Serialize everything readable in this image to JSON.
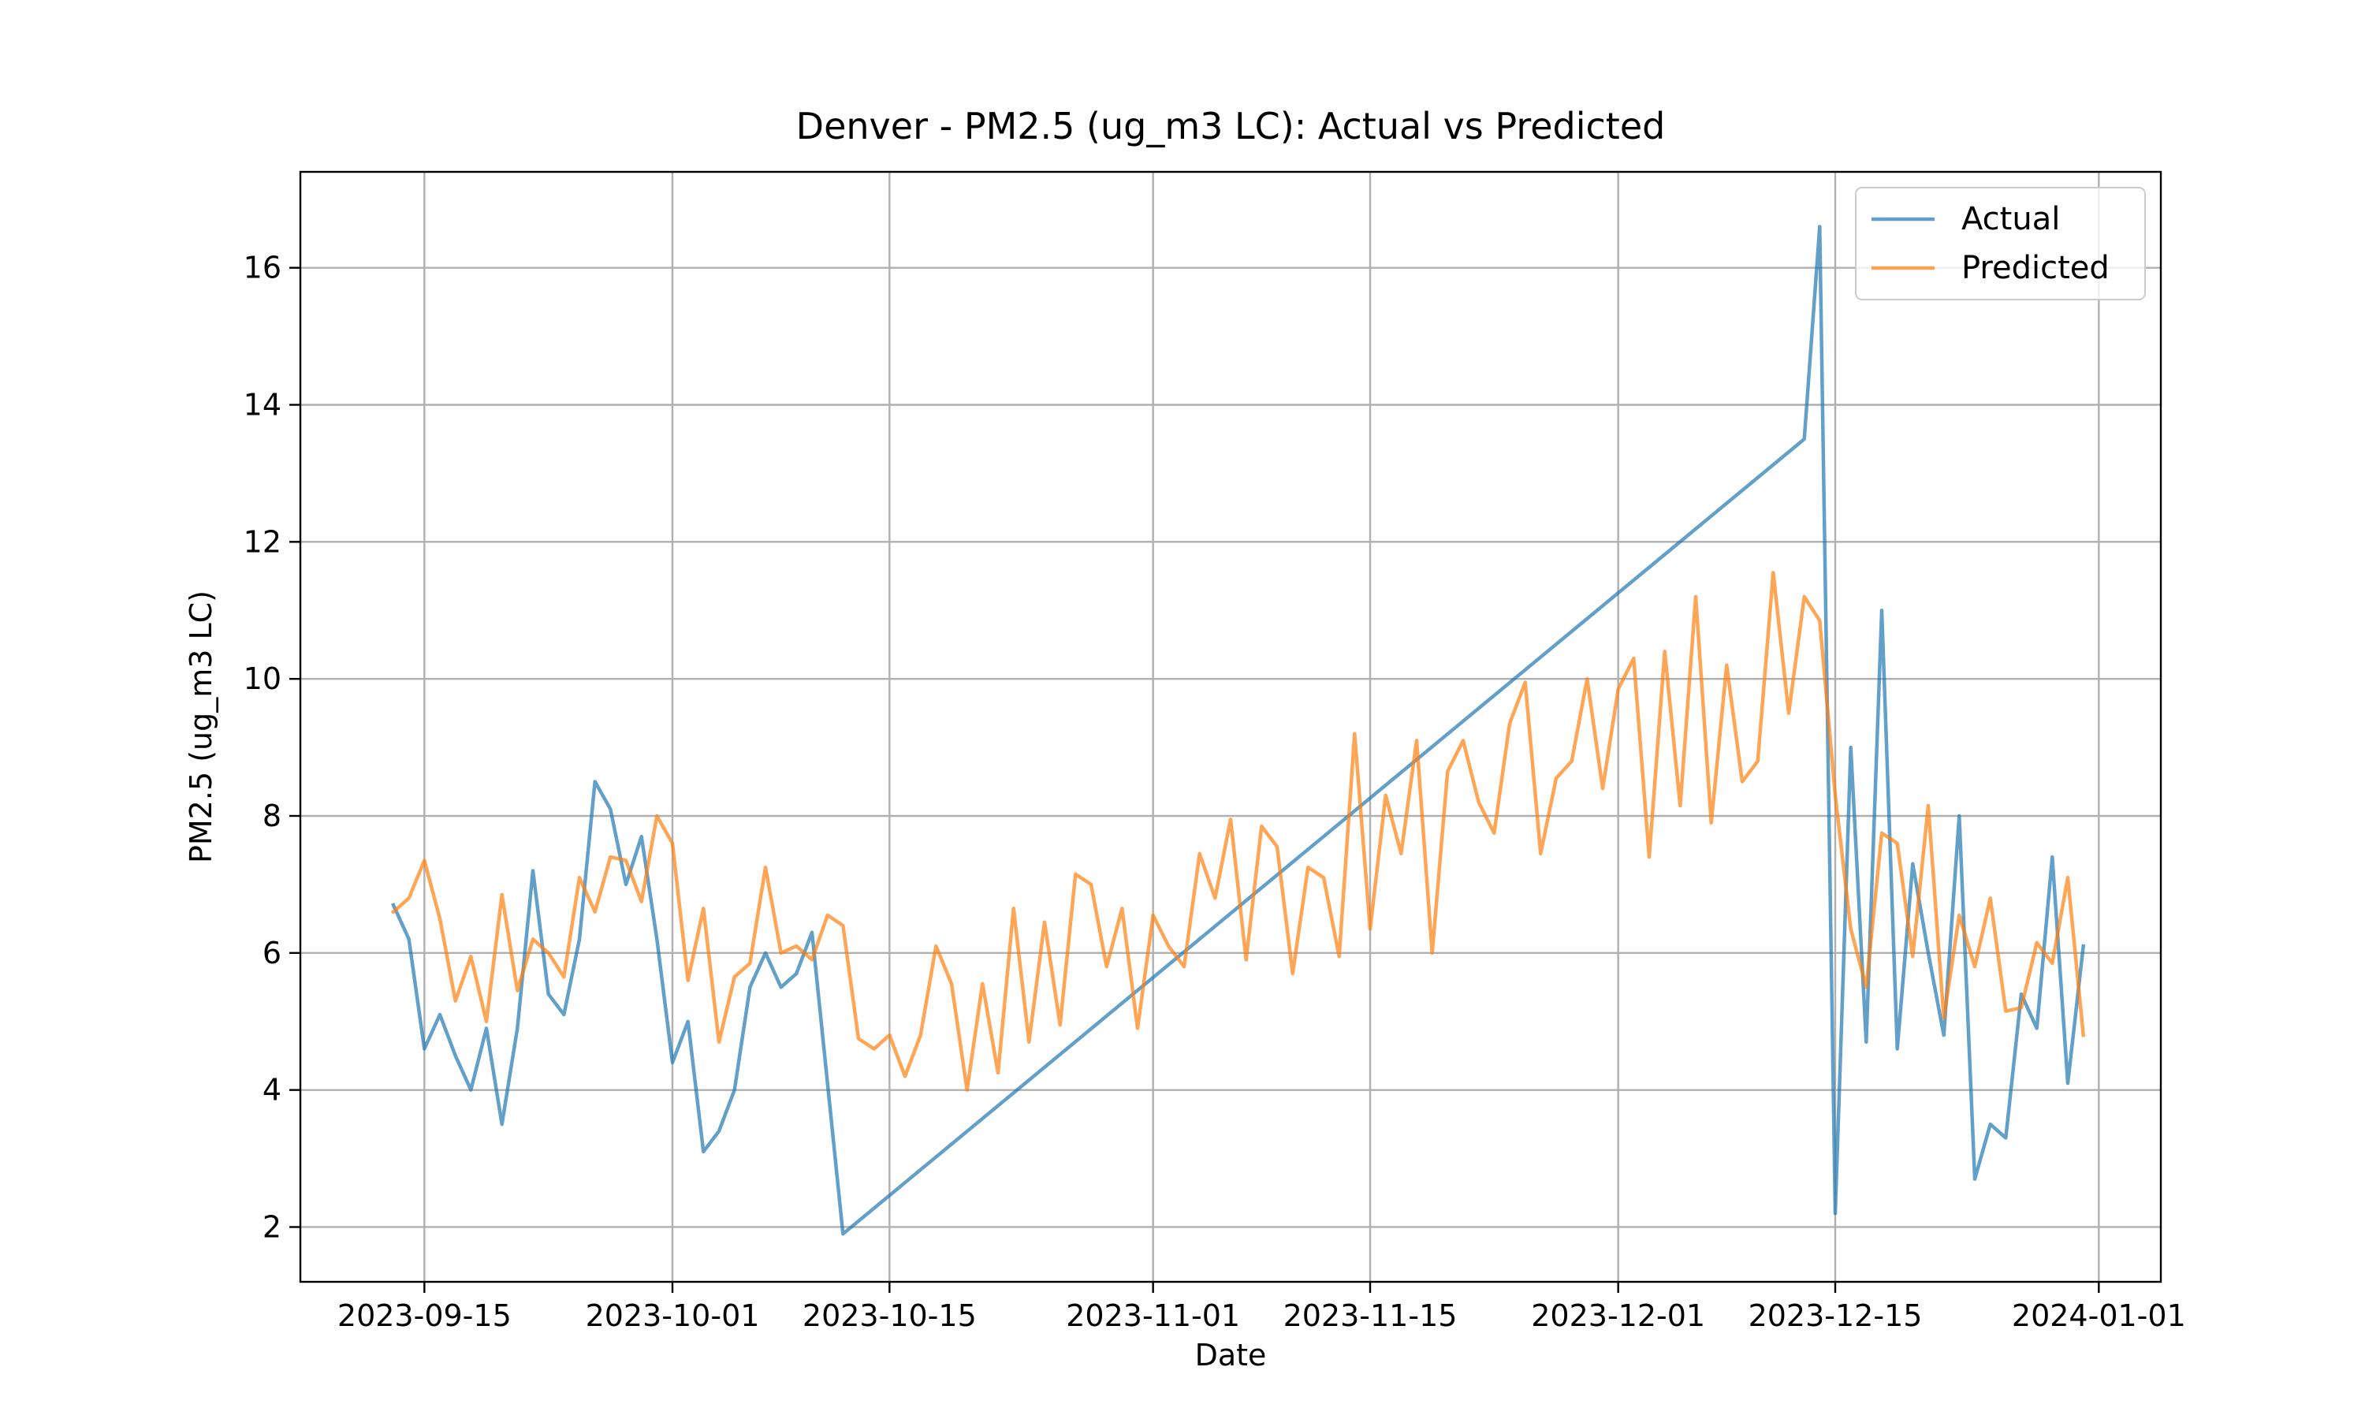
{
  "chart_data": {
    "type": "line",
    "title": "Denver - PM2.5 (ug_m3 LC): Actual vs Predicted",
    "xlabel": "Date",
    "ylabel": "PM2.5 (ug_m3 LC)",
    "xlim": [
      "2023-09-07",
      "2024-01-05"
    ],
    "ylim": [
      1.2,
      17.4
    ],
    "x_ticks": [
      "2023-09-15",
      "2023-10-01",
      "2023-10-15",
      "2023-11-01",
      "2023-11-15",
      "2023-12-01",
      "2023-12-15",
      "2024-01-01"
    ],
    "y_ticks": [
      2,
      4,
      6,
      8,
      10,
      12,
      14,
      16
    ],
    "grid": true,
    "legend_position": "top-right",
    "series": [
      {
        "name": "Actual",
        "color": "#1f77b4",
        "points": [
          [
            "2023-09-13",
            6.7
          ],
          [
            "2023-09-14",
            6.2
          ],
          [
            "2023-09-15",
            4.6
          ],
          [
            "2023-09-16",
            5.1
          ],
          [
            "2023-09-17",
            4.5
          ],
          [
            "2023-09-18",
            4.0
          ],
          [
            "2023-09-19",
            4.9
          ],
          [
            "2023-09-20",
            3.5
          ],
          [
            "2023-09-21",
            4.9
          ],
          [
            "2023-09-22",
            7.2
          ],
          [
            "2023-09-23",
            5.4
          ],
          [
            "2023-09-24",
            5.1
          ],
          [
            "2023-09-25",
            6.2
          ],
          [
            "2023-09-26",
            8.5
          ],
          [
            "2023-09-27",
            8.1
          ],
          [
            "2023-09-28",
            7.0
          ],
          [
            "2023-09-29",
            7.7
          ],
          [
            "2023-09-30",
            6.2
          ],
          [
            "2023-10-01",
            4.4
          ],
          [
            "2023-10-02",
            5.0
          ],
          [
            "2023-10-03",
            3.1
          ],
          [
            "2023-10-04",
            3.4
          ],
          [
            "2023-10-05",
            4.0
          ],
          [
            "2023-10-06",
            5.5
          ],
          [
            "2023-10-07",
            6.0
          ],
          [
            "2023-10-08",
            5.5
          ],
          [
            "2023-10-09",
            5.7
          ],
          [
            "2023-10-10",
            6.3
          ],
          [
            "2023-10-11",
            4.1
          ],
          [
            "2023-10-12",
            1.9
          ],
          [
            "2023-12-13",
            13.5
          ],
          [
            "2023-12-14",
            16.6
          ],
          [
            "2023-12-15",
            2.2
          ],
          [
            "2023-12-16",
            9.0
          ],
          [
            "2023-12-17",
            4.7
          ],
          [
            "2023-12-18",
            11.0
          ],
          [
            "2023-12-19",
            4.6
          ],
          [
            "2023-12-20",
            7.3
          ],
          [
            "2023-12-21",
            6.0
          ],
          [
            "2023-12-22",
            4.8
          ],
          [
            "2023-12-23",
            8.0
          ],
          [
            "2023-12-24",
            2.7
          ],
          [
            "2023-12-25",
            3.5
          ],
          [
            "2023-12-26",
            3.3
          ],
          [
            "2023-12-27",
            5.4
          ],
          [
            "2023-12-28",
            4.9
          ],
          [
            "2023-12-29",
            7.4
          ],
          [
            "2023-12-30",
            4.1
          ],
          [
            "2023-12-31",
            6.1
          ]
        ]
      },
      {
        "name": "Predicted",
        "color": "#ff7f0e",
        "points": [
          [
            "2023-09-13",
            6.6
          ],
          [
            "2023-09-14",
            6.8
          ],
          [
            "2023-09-15",
            7.35
          ],
          [
            "2023-09-16",
            6.5
          ],
          [
            "2023-09-17",
            5.3
          ],
          [
            "2023-09-18",
            5.95
          ],
          [
            "2023-09-19",
            5.0
          ],
          [
            "2023-09-20",
            6.85
          ],
          [
            "2023-09-21",
            5.45
          ],
          [
            "2023-09-22",
            6.2
          ],
          [
            "2023-09-23",
            6.0
          ],
          [
            "2023-09-24",
            5.65
          ],
          [
            "2023-09-25",
            7.1
          ],
          [
            "2023-09-26",
            6.6
          ],
          [
            "2023-09-27",
            7.4
          ],
          [
            "2023-09-28",
            7.35
          ],
          [
            "2023-09-29",
            6.75
          ],
          [
            "2023-09-30",
            8.0
          ],
          [
            "2023-10-01",
            7.6
          ],
          [
            "2023-10-02",
            5.6
          ],
          [
            "2023-10-03",
            6.65
          ],
          [
            "2023-10-04",
            4.7
          ],
          [
            "2023-10-05",
            5.65
          ],
          [
            "2023-10-06",
            5.85
          ],
          [
            "2023-10-07",
            7.25
          ],
          [
            "2023-10-08",
            6.0
          ],
          [
            "2023-10-09",
            6.1
          ],
          [
            "2023-10-10",
            5.9
          ],
          [
            "2023-10-11",
            6.55
          ],
          [
            "2023-10-12",
            6.4
          ],
          [
            "2023-10-13",
            4.75
          ],
          [
            "2023-10-14",
            4.6
          ],
          [
            "2023-10-15",
            4.8
          ],
          [
            "2023-10-16",
            4.2
          ],
          [
            "2023-10-17",
            4.8
          ],
          [
            "2023-10-18",
            6.1
          ],
          [
            "2023-10-19",
            5.55
          ],
          [
            "2023-10-20",
            4.0
          ],
          [
            "2023-10-21",
            5.55
          ],
          [
            "2023-10-22",
            4.25
          ],
          [
            "2023-10-23",
            6.65
          ],
          [
            "2023-10-24",
            4.7
          ],
          [
            "2023-10-25",
            6.45
          ],
          [
            "2023-10-26",
            4.95
          ],
          [
            "2023-10-27",
            7.15
          ],
          [
            "2023-10-28",
            7.0
          ],
          [
            "2023-10-29",
            5.8
          ],
          [
            "2023-10-30",
            6.65
          ],
          [
            "2023-10-31",
            4.9
          ],
          [
            "2023-11-01",
            6.55
          ],
          [
            "2023-11-02",
            6.1
          ],
          [
            "2023-11-03",
            5.8
          ],
          [
            "2023-11-04",
            7.45
          ],
          [
            "2023-11-05",
            6.8
          ],
          [
            "2023-11-06",
            7.95
          ],
          [
            "2023-11-07",
            5.9
          ],
          [
            "2023-11-08",
            7.85
          ],
          [
            "2023-11-09",
            7.55
          ],
          [
            "2023-11-10",
            5.7
          ],
          [
            "2023-11-11",
            7.25
          ],
          [
            "2023-11-12",
            7.1
          ],
          [
            "2023-11-13",
            5.95
          ],
          [
            "2023-11-14",
            9.2
          ],
          [
            "2023-11-15",
            6.35
          ],
          [
            "2023-11-16",
            8.3
          ],
          [
            "2023-11-17",
            7.45
          ],
          [
            "2023-11-18",
            9.1
          ],
          [
            "2023-11-19",
            6.0
          ],
          [
            "2023-11-20",
            8.65
          ],
          [
            "2023-11-21",
            9.1
          ],
          [
            "2023-11-22",
            8.2
          ],
          [
            "2023-11-23",
            7.75
          ],
          [
            "2023-11-24",
            9.35
          ],
          [
            "2023-11-25",
            9.95
          ],
          [
            "2023-11-26",
            7.45
          ],
          [
            "2023-11-27",
            8.55
          ],
          [
            "2023-11-28",
            8.8
          ],
          [
            "2023-11-29",
            10.0
          ],
          [
            "2023-11-30",
            8.4
          ],
          [
            "2023-12-01",
            9.85
          ],
          [
            "2023-12-02",
            10.3
          ],
          [
            "2023-12-03",
            7.4
          ],
          [
            "2023-12-04",
            10.4
          ],
          [
            "2023-12-05",
            8.15
          ],
          [
            "2023-12-06",
            11.2
          ],
          [
            "2023-12-07",
            7.9
          ],
          [
            "2023-12-08",
            10.2
          ],
          [
            "2023-12-09",
            8.5
          ],
          [
            "2023-12-10",
            8.8
          ],
          [
            "2023-12-11",
            11.55
          ],
          [
            "2023-12-12",
            9.5
          ],
          [
            "2023-12-13",
            11.2
          ],
          [
            "2023-12-14",
            10.85
          ],
          [
            "2023-12-15",
            8.3
          ],
          [
            "2023-12-16",
            6.35
          ],
          [
            "2023-12-17",
            5.5
          ],
          [
            "2023-12-18",
            7.75
          ],
          [
            "2023-12-19",
            7.6
          ],
          [
            "2023-12-20",
            5.95
          ],
          [
            "2023-12-21",
            8.15
          ],
          [
            "2023-12-22",
            5.05
          ],
          [
            "2023-12-23",
            6.55
          ],
          [
            "2023-12-24",
            5.8
          ],
          [
            "2023-12-25",
            6.8
          ],
          [
            "2023-12-26",
            5.15
          ],
          [
            "2023-12-27",
            5.2
          ],
          [
            "2023-12-28",
            6.15
          ],
          [
            "2023-12-29",
            5.85
          ],
          [
            "2023-12-30",
            7.1
          ],
          [
            "2023-12-31",
            4.8
          ]
        ]
      }
    ]
  }
}
